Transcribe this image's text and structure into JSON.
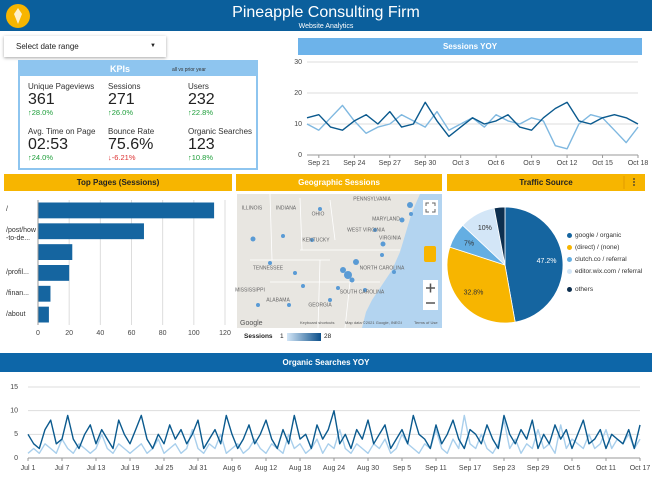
{
  "header": {
    "title": "Pineapple Consulting Firm",
    "subtitle": "Website Analytics"
  },
  "date_range": "Select date range",
  "kpis": {
    "title": "KPIs",
    "note": "all vs prior year",
    "items": [
      {
        "label": "Unique Pageviews",
        "value": "361",
        "change": "28.0%"
      },
      {
        "label": "Sessions",
        "value": "271",
        "change": "26.0%"
      },
      {
        "label": "Users",
        "value": "232",
        "change": "22.8%"
      },
      {
        "label": "Avg. Time on Page",
        "value": "02:53",
        "change": "24.0%"
      },
      {
        "label": "Bounce Rate",
        "value": "75.6%",
        "change": "-6.21%"
      },
      {
        "label": "Organic Searches",
        "value": "123",
        "change": "10.8%"
      }
    ]
  },
  "map": {
    "title": "Geographic Sessions",
    "legend_title": "Sessions",
    "legend_min": "1",
    "legend_max": "28",
    "labels": [
      "ILLINOIS",
      "INDIANA",
      "OHIO",
      "PENNSYLVANIA",
      "MARYLAND",
      "WEST VIRGINIA",
      "VIRGINIA",
      "KENTUCKY",
      "TENNESSEE",
      "NORTH CAROLINA",
      "SOUTH CAROLINA",
      "ALABAMA",
      "GEORGIA",
      "MISSISSIPPI"
    ],
    "footer": [
      "Google",
      "Keyboard shortcuts",
      "Map data ©2021 Google, INEGI",
      "Terms of Use"
    ]
  },
  "chart_data": [
    {
      "type": "line",
      "title": "Sessions YOY",
      "x": [
        0,
        1,
        2,
        3,
        4,
        5,
        6,
        7,
        8,
        9,
        10,
        11,
        12,
        13,
        14,
        15,
        16,
        17,
        18,
        19,
        20,
        21,
        22,
        23,
        24,
        25,
        26,
        27,
        28
      ],
      "xlim": [
        0,
        28
      ],
      "xticks": [
        {
          "value": 1,
          "label": "Sep 21"
        },
        {
          "value": 4,
          "label": "Sep 24"
        },
        {
          "value": 7,
          "label": "Sep 27"
        },
        {
          "value": 10,
          "label": "Sep 30"
        },
        {
          "value": 13,
          "label": "Oct 3"
        },
        {
          "value": 16,
          "label": "Oct 6"
        },
        {
          "value": 19,
          "label": "Oct 9"
        },
        {
          "value": 22,
          "label": "Oct 12"
        },
        {
          "value": 25,
          "label": "Oct 15"
        },
        {
          "value": 28,
          "label": "Oct 18"
        }
      ],
      "ylim": [
        0,
        30
      ],
      "yticks": [
        0,
        10,
        20,
        30
      ],
      "grid": true,
      "series": [
        {
          "color": "#7fb8e0",
          "values": [
            10,
            8,
            12,
            16,
            11,
            7,
            9,
            10,
            13,
            11,
            9,
            14,
            8,
            10,
            12,
            9,
            13,
            11,
            10,
            12,
            11,
            3,
            2,
            10,
            13,
            12,
            8,
            4,
            9
          ]
        },
        {
          "color": "#0b5a8e",
          "values": [
            12,
            13,
            9,
            8,
            11,
            13,
            10,
            14,
            9,
            10,
            17,
            11,
            6,
            9,
            12,
            10,
            11,
            13,
            9,
            8,
            12,
            15,
            17,
            11,
            10,
            12,
            13,
            12,
            10
          ]
        }
      ]
    },
    {
      "type": "hbar",
      "title": "Top Pages (Sessions)",
      "categories": [
        "/",
        "/post/how-to-de...",
        null,
        "/profil...",
        "/finan...",
        "/about"
      ],
      "values": [
        113,
        68,
        22,
        20,
        8,
        7
      ],
      "color": "#1565a0",
      "xlim": [
        0,
        120
      ],
      "xticks": [
        0,
        20,
        40,
        60,
        80,
        100,
        120
      ],
      "grid": true
    },
    {
      "type": "pie",
      "title": "Traffic Source",
      "categories": [
        "google / organic",
        "(direct) / (none)",
        "clutch.co / referral",
        "editor.wix.com / referral",
        "others"
      ],
      "values": [
        47.2,
        32.8,
        7,
        10,
        3
      ],
      "value_labels": [
        "47.2%",
        "32.8%",
        "7%",
        "10%",
        null
      ],
      "colors": [
        "#1565a0",
        "#f7b500",
        "#64aee2",
        "#d3e6f7",
        "#0d2f4f"
      ]
    },
    {
      "type": "line",
      "title": "Organic Searches YOY",
      "x": [
        0,
        1,
        2,
        3,
        4,
        5,
        6,
        7,
        8,
        9,
        10,
        11,
        12,
        13,
        14,
        15,
        16,
        17,
        18,
        19,
        20,
        21,
        22,
        23,
        24,
        25,
        26,
        27,
        28,
        29,
        30,
        31,
        32,
        33,
        34,
        35,
        36,
        37,
        38,
        39,
        40,
        41,
        42,
        43,
        44,
        45,
        46,
        47,
        48,
        49,
        50,
        51,
        52,
        53,
        54,
        55,
        56,
        57,
        58,
        59,
        60,
        61,
        62,
        63,
        64,
        65,
        66,
        67,
        68,
        69,
        70,
        71,
        72,
        73,
        74,
        75,
        76,
        77,
        78,
        79,
        80,
        81,
        82,
        83,
        84,
        85,
        86,
        87,
        88,
        89,
        90,
        91,
        92,
        93,
        94,
        95,
        96,
        97,
        98,
        99,
        100,
        101,
        102,
        103,
        104,
        105,
        106,
        107,
        108
      ],
      "xlim": [
        0,
        108
      ],
      "xticks": [
        {
          "value": 0,
          "label": "Jul 1"
        },
        {
          "value": 6,
          "label": "Jul 7"
        },
        {
          "value": 12,
          "label": "Jul 13"
        },
        {
          "value": 18,
          "label": "Jul 19"
        },
        {
          "value": 24,
          "label": "Jul 25"
        },
        {
          "value": 30,
          "label": "Jul 31"
        },
        {
          "value": 36,
          "label": "Aug 6"
        },
        {
          "value": 42,
          "label": "Aug 12"
        },
        {
          "value": 48,
          "label": "Aug 18"
        },
        {
          "value": 54,
          "label": "Aug 24"
        },
        {
          "value": 60,
          "label": "Aug 30"
        },
        {
          "value": 66,
          "label": "Sep 5"
        },
        {
          "value": 72,
          "label": "Sep 11"
        },
        {
          "value": 78,
          "label": "Sep 17"
        },
        {
          "value": 84,
          "label": "Sep 23"
        },
        {
          "value": 90,
          "label": "Sep 29"
        },
        {
          "value": 96,
          "label": "Oct 5"
        },
        {
          "value": 102,
          "label": "Oct 11"
        },
        {
          "value": 108,
          "label": "Oct 17"
        }
      ],
      "ylim": [
        0,
        15
      ],
      "yticks": [
        0,
        5,
        10,
        15
      ],
      "grid": true,
      "series": [
        {
          "color": "#a9cfec",
          "values": [
            1,
            2,
            1,
            3,
            2,
            1,
            4,
            2,
            1,
            3,
            2,
            1,
            2,
            5,
            2,
            1,
            3,
            2,
            1,
            2,
            3,
            1,
            2,
            4,
            1,
            2,
            3,
            1,
            2,
            6,
            2,
            1,
            3,
            2,
            5,
            1,
            2,
            3,
            1,
            2,
            4,
            2,
            1,
            3,
            2,
            1,
            5,
            2,
            3,
            1,
            2,
            4,
            1,
            3,
            2,
            6,
            2,
            1,
            3,
            2,
            1,
            3,
            2,
            4,
            1,
            2,
            5,
            3,
            2,
            1,
            3,
            2,
            6,
            2,
            1,
            4,
            2,
            9,
            3,
            2,
            5,
            2,
            1,
            3,
            8,
            2,
            4,
            1,
            3,
            2,
            6,
            2,
            3,
            1,
            7,
            2,
            4,
            3,
            2,
            5,
            2,
            3,
            6,
            2,
            4,
            3,
            5,
            2,
            4
          ]
        },
        {
          "color": "#0b5a8e",
          "values": [
            5,
            3,
            2,
            6,
            8,
            3,
            4,
            9,
            4,
            2,
            5,
            7,
            3,
            6,
            4,
            2,
            8,
            5,
            3,
            6,
            9,
            4,
            2,
            5,
            3,
            7,
            4,
            6,
            3,
            5,
            8,
            2,
            4,
            6,
            3,
            9,
            5,
            2,
            4,
            7,
            3,
            5,
            8,
            4,
            2,
            6,
            3,
            9,
            4,
            5,
            2,
            7,
            4,
            6,
            10,
            3,
            5,
            2,
            6,
            4,
            8,
            3,
            5,
            7,
            2,
            4,
            6,
            3,
            9,
            5,
            4,
            2,
            7,
            3,
            5,
            8,
            4,
            2,
            6,
            5,
            3,
            7,
            4,
            2,
            9,
            5,
            3,
            6,
            4,
            8,
            2,
            5,
            3,
            7,
            4,
            6,
            2,
            5,
            8,
            3,
            4,
            6,
            2,
            5,
            4,
            3,
            6,
            2,
            7
          ]
        }
      ]
    }
  ]
}
